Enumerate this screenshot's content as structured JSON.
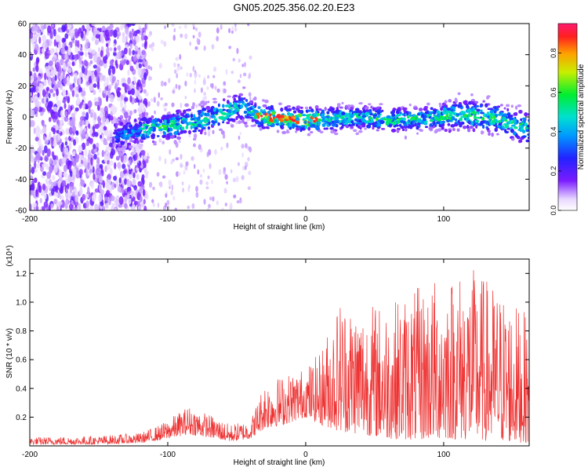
{
  "title": "GN05.2025.356.02.20.E23",
  "chart_data": [
    {
      "type": "heatmap",
      "xlabel": "Height of straight line (km)",
      "ylabel": "Frequency (Hz)",
      "xlim": [
        -200,
        162
      ],
      "ylim": [
        -60,
        60
      ],
      "x_ticks": [
        -200,
        -100,
        0,
        100
      ],
      "x_tick_labels": [
        "-200",
        "-100",
        "0",
        "100"
      ],
      "y_ticks": [
        -60,
        -40,
        -20,
        0,
        20,
        40,
        60
      ],
      "y_tick_labels": [
        "-60",
        "-40",
        "-20",
        "0",
        "20",
        "40",
        "60"
      ],
      "colorbar": {
        "label": "Normalized spectral amplitude",
        "range": [
          0,
          0.95
        ],
        "ticks": [
          0.0,
          0.2,
          0.4,
          0.6,
          0.8
        ],
        "tick_labels": [
          "0.0",
          "0.2",
          "0.4",
          "0.6",
          "0.8"
        ],
        "colormap": "rainbow (white-purple-blue-cyan-green-yellow-orange-red-pink)"
      },
      "ridge_center_hz": [
        {
          "x": -135,
          "y": -12
        },
        {
          "x": -120,
          "y": -8
        },
        {
          "x": -100,
          "y": -6
        },
        {
          "x": -80,
          "y": -3
        },
        {
          "x": -60,
          "y": 2
        },
        {
          "x": -47,
          "y": 7
        },
        {
          "x": -40,
          "y": 3
        },
        {
          "x": -30,
          "y": 0
        },
        {
          "x": -15,
          "y": -1
        },
        {
          "x": 0,
          "y": -2
        },
        {
          "x": 20,
          "y": -1
        },
        {
          "x": 40,
          "y": 0
        },
        {
          "x": 60,
          "y": -2
        },
        {
          "x": 80,
          "y": -1
        },
        {
          "x": 100,
          "y": 0
        },
        {
          "x": 120,
          "y": 1
        },
        {
          "x": 140,
          "y": -1
        },
        {
          "x": 162,
          "y": -8
        }
      ],
      "peak_amplitude_region_km": [
        -35,
        10
      ],
      "noise_region_km": [
        -200,
        -120
      ]
    },
    {
      "type": "line",
      "xlabel": "Height of straight line (km)",
      "ylabel": "SNR (10 * v/v)",
      "y_scale_note": "(x10⁴)",
      "xlim": [
        -200,
        162
      ],
      "ylim": [
        0,
        1.3
      ],
      "x_ticks": [
        -200,
        -100,
        0,
        100
      ],
      "x_tick_labels": [
        "-200",
        "-100",
        "0",
        "100"
      ],
      "y_ticks": [
        0.2,
        0.4,
        0.6,
        0.8,
        1.0,
        1.2
      ],
      "y_tick_labels": [
        "0.2",
        "0.4",
        "0.6",
        "0.8",
        "1.0",
        "1.2"
      ],
      "color": "#ee3333",
      "envelope": [
        {
          "x": -200,
          "base": 0.01,
          "peak": 0.06
        },
        {
          "x": -150,
          "base": 0.01,
          "peak": 0.07
        },
        {
          "x": -120,
          "base": 0.02,
          "peak": 0.09
        },
        {
          "x": -105,
          "base": 0.04,
          "peak": 0.15
        },
        {
          "x": -85,
          "base": 0.08,
          "peak": 0.28
        },
        {
          "x": -70,
          "base": 0.06,
          "peak": 0.22
        },
        {
          "x": -55,
          "base": 0.03,
          "peak": 0.15
        },
        {
          "x": -40,
          "base": 0.05,
          "peak": 0.18
        },
        {
          "x": -30,
          "base": 0.12,
          "peak": 0.45
        },
        {
          "x": -15,
          "base": 0.15,
          "peak": 0.5
        },
        {
          "x": 0,
          "base": 0.2,
          "peak": 0.55
        },
        {
          "x": 10,
          "base": 0.15,
          "peak": 0.65
        },
        {
          "x": 25,
          "base": 0.1,
          "peak": 1.05
        },
        {
          "x": 40,
          "base": 0.08,
          "peak": 1.0
        },
        {
          "x": 60,
          "base": 0.05,
          "peak": 1.0
        },
        {
          "x": 80,
          "base": 0.04,
          "peak": 1.1
        },
        {
          "x": 100,
          "base": 0.05,
          "peak": 1.2
        },
        {
          "x": 120,
          "base": 0.04,
          "peak": 1.25
        },
        {
          "x": 140,
          "base": 0.03,
          "peak": 1.1
        },
        {
          "x": 162,
          "base": 0.02,
          "peak": 0.9
        }
      ]
    }
  ]
}
